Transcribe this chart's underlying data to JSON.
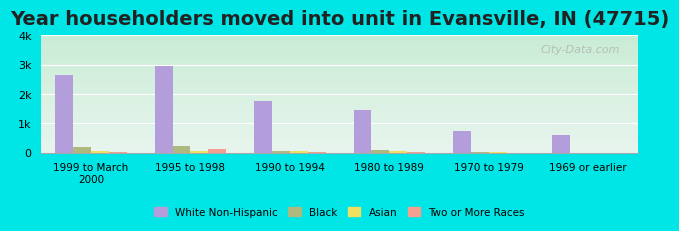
{
  "title": "Year householders moved into unit in Evansville, IN (47715)",
  "categories": [
    "1999 to March\n2000",
    "1995 to 1998",
    "1990 to 1994",
    "1980 to 1989",
    "1970 to 1979",
    "1969 or earlier"
  ],
  "series": {
    "White Non-Hispanic": [
      2650,
      2950,
      1750,
      1450,
      750,
      600
    ],
    "Black": [
      200,
      230,
      70,
      80,
      30,
      0
    ],
    "Asian": [
      50,
      60,
      40,
      70,
      20,
      0
    ],
    "Two or More Races": [
      30,
      120,
      20,
      20,
      0,
      0
    ]
  },
  "colors": {
    "White Non-Hispanic": "#b39ddb",
    "Black": "#adb97e",
    "Asian": "#f0e060",
    "Two or More Races": "#f4a090"
  },
  "ylim": [
    0,
    4000
  ],
  "yticks": [
    0,
    1000,
    2000,
    3000,
    4000
  ],
  "ytick_labels": [
    "0",
    "1k",
    "2k",
    "3k",
    "4k"
  ],
  "background_color": "#00e5e5",
  "plot_bg_top": "#e8f5e9",
  "plot_bg_bottom": "#f0f8f0",
  "title_fontsize": 14,
  "bar_width": 0.18,
  "watermark": "City-Data.com"
}
